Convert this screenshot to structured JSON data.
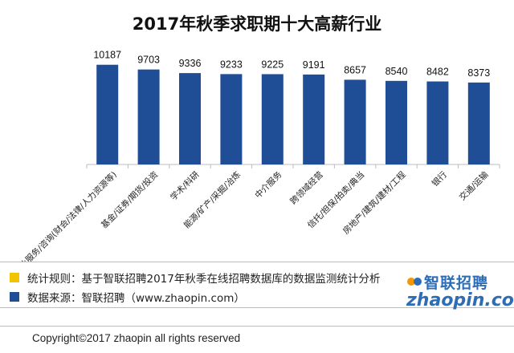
{
  "chart_data": {
    "type": "bar",
    "title": "2017年秋季求职期十大高薪行业",
    "categories": [
      "专业服务/咨询(财会/法律/人力资源等)",
      "基金/证券/期货/投资",
      "学术/科研",
      "能源/矿产/采掘/冶炼",
      "中介服务",
      "跨领域经营",
      "信托/担保/拍卖/典当",
      "房地产/建筑/建材/工程",
      "银行",
      "交通/运输"
    ],
    "values": [
      10187,
      9703,
      9336,
      9233,
      9225,
      9191,
      8657,
      8540,
      8482,
      8373
    ],
    "ylim": [
      0,
      12000
    ],
    "xlabel": "",
    "ylabel": "",
    "grid": false,
    "bar_color": "#1f4e96",
    "axis_color": "#bdbdbd"
  },
  "footer": {
    "rule_label": "统计规则：基于智联招聘2017年秋季在线招聘数据库的数据监测统计分析",
    "source_label": "数据来源：智联招聘（www.zhaopin.com）",
    "copyright": "Copyright©2017 zhaopin all rights reserved",
    "rule_color": "#f2c300",
    "source_color": "#1f4e96"
  },
  "logo": {
    "cn": "智联招聘",
    "en": "zhaopin.com",
    "color": "#2d6db5",
    "accent": "#f39800"
  }
}
